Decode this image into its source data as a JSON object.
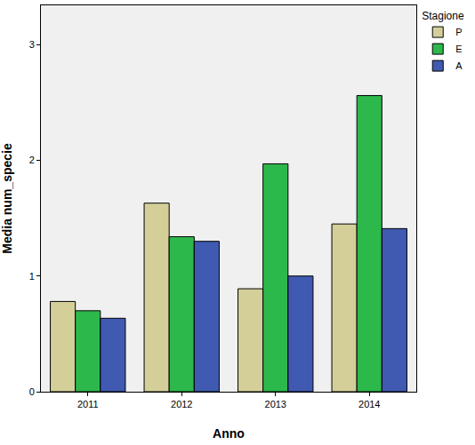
{
  "chart_data": {
    "type": "bar",
    "x_label": "Anno",
    "y_label": "Media num_specie",
    "legend_title": "Stagione",
    "categories": [
      "2011",
      "2012",
      "2013",
      "2014"
    ],
    "series": [
      {
        "name": "P",
        "color": "#d4cf99",
        "values": [
          0.78,
          1.63,
          0.89,
          1.45
        ]
      },
      {
        "name": "E",
        "color": "#2db84b",
        "values": [
          0.7,
          1.34,
          1.97,
          2.56
        ]
      },
      {
        "name": "A",
        "color": "#3f5ab0",
        "values": [
          0.635,
          1.3,
          1.0,
          1.41
        ]
      }
    ],
    "ylim": [
      0,
      3.34
    ],
    "yticks": [
      0,
      1,
      2,
      3
    ],
    "grid": false,
    "legend": "top right"
  }
}
